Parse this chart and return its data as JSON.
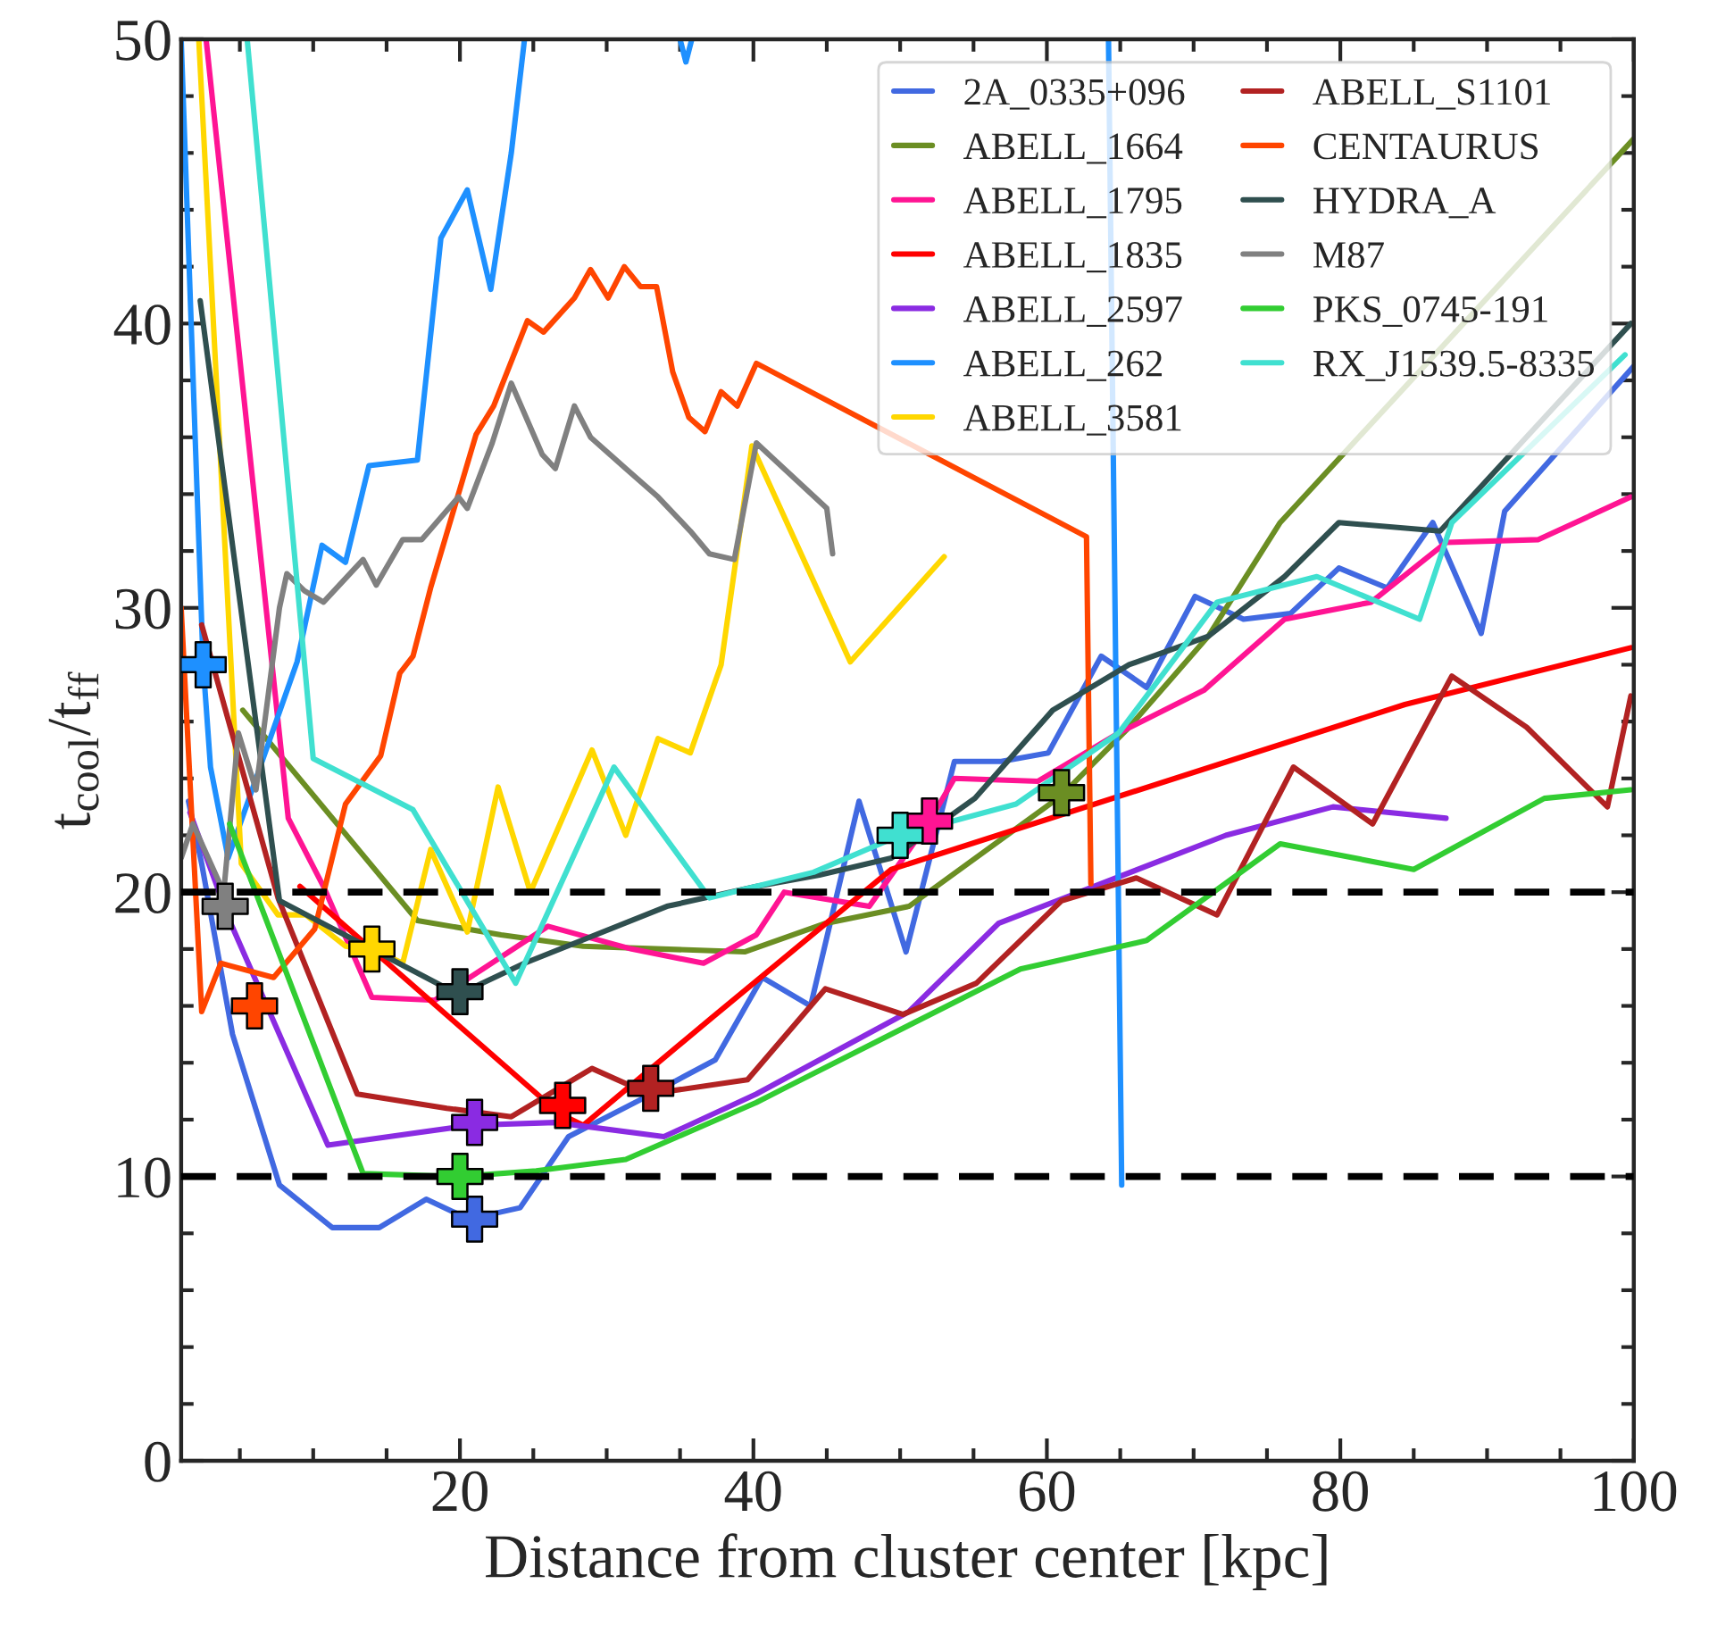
{
  "chart_data": {
    "type": "line",
    "xlabel": "Distance from cluster center [kpc]",
    "ylabel": "t$_{cool}$/t$_{ff}$",
    "xlim": [
      1,
      100
    ],
    "xticks": [
      20,
      40,
      60,
      80,
      100
    ],
    "ylim": [
      0,
      50
    ],
    "yticks": [
      0,
      10,
      20,
      30,
      40,
      50
    ],
    "grid": false,
    "legend": "top right",
    "line_style": "solid",
    "ref_lines": [
      {
        "axis": "y",
        "value": 20,
        "color": "#000000",
        "line_style": "dashed"
      },
      {
        "axis": "y",
        "value": 10,
        "color": "#000000",
        "line_style": "dashed"
      }
    ],
    "series": [
      {
        "name": "2A_0335+096",
        "color": "#4169e1",
        "x": [
          1.5,
          2.4,
          4.5,
          7.7,
          11.3,
          14.5,
          17.7,
          20.6,
          24.1,
          27.4,
          32.3,
          37.4,
          40.6,
          43.9,
          47.2,
          50.4,
          53.7,
          56.9,
          60.1,
          63.7,
          66.8,
          70.1,
          73.4,
          76.6,
          79.9,
          83.2,
          86.3,
          89.6,
          91.2,
          100
        ],
        "values": [
          23.2,
          21.0,
          15.0,
          9.7,
          8.2,
          8.2,
          9.2,
          8.5,
          8.9,
          11.4,
          12.7,
          14.1,
          17.0,
          16.0,
          23.2,
          17.9,
          24.6,
          24.6,
          24.9,
          28.3,
          27.2,
          30.4,
          29.6,
          29.8,
          31.4,
          30.7,
          33.0,
          29.1,
          33.4,
          38.5
        ]
      },
      {
        "name": "ABELL_1664",
        "color": "#6b8e23",
        "x": [
          5.2,
          17.1,
          22.8,
          28.4,
          33.8,
          39.4,
          44.9,
          50.6,
          61.0,
          65.6,
          71.0,
          75.9,
          100
        ],
        "values": [
          26.4,
          19.0,
          18.5,
          18.1,
          18.0,
          17.9,
          18.9,
          19.5,
          23.4,
          25.8,
          29.0,
          33.0,
          46.5
        ]
      },
      {
        "name": "ABELL_1795",
        "color": "#ff1493",
        "x": [
          2.7,
          8.3,
          10.7,
          14.0,
          18.3,
          26.0,
          31.7,
          36.6,
          40.2,
          42.1,
          47.9,
          52.0,
          53.7,
          59.4,
          64.9,
          70.7,
          76.2,
          82.1,
          87.2,
          93.5,
          99.8
        ],
        "values": [
          50,
          22.6,
          20.2,
          16.3,
          16.2,
          18.8,
          18.0,
          17.5,
          18.5,
          20.0,
          19.5,
          22.5,
          24.0,
          23.9,
          25.6,
          27.1,
          29.6,
          30.2,
          32.3,
          32.4,
          33.9
        ]
      },
      {
        "name": "ABELL_1835",
        "color": "#ff0000",
        "x": [
          9.1,
          26.8,
          28.4,
          37.2,
          49.4,
          84.4,
          99.8
        ],
        "values": [
          20.2,
          12.2,
          11.8,
          15.6,
          20.8,
          26.6,
          28.6
        ]
      },
      {
        "name": "ABELL_2597",
        "color": "#8a2be2",
        "x": [
          1.6,
          4.3,
          11.0,
          20.7,
          26.5,
          33.9,
          40.2,
          50.6,
          56.7,
          61.2,
          72.2,
          79.5,
          87.2
        ],
        "values": [
          22.8,
          19.0,
          11.1,
          11.8,
          11.9,
          11.4,
          12.9,
          15.8,
          18.9,
          19.8,
          22.0,
          23.0,
          22.6
        ]
      },
      {
        "name": "ABELL_262",
        "color": "#1e90ff",
        "x": [
          1.0,
          2.5,
          3.0,
          4.2,
          8.9,
          10.6,
          12.2,
          13.8,
          17.1,
          18.7,
          20.5,
          22.1,
          23.5,
          24.4,
          30.0,
          35.0,
          35.4,
          35.8,
          45.0,
          64.2,
          65.1
        ],
        "values": [
          50,
          28.0,
          24.4,
          21.2,
          28.1,
          32.2,
          31.6,
          35.0,
          35.2,
          43.0,
          44.7,
          41.2,
          46.0,
          50,
          null,
          50,
          49.2,
          50,
          null,
          50,
          9.7
        ]
      },
      {
        "name": "ABELL_3581",
        "color": "#ffd700",
        "x": [
          2.2,
          5.1,
          7.6,
          9.5,
          12.2,
          14.0,
          16.1,
          18.0,
          20.5,
          22.6,
          24.8,
          29.0,
          31.3,
          33.5,
          35.7,
          37.8,
          39.9,
          46.6,
          53.0
        ],
        "values": [
          50,
          21.0,
          19.2,
          19.2,
          18.1,
          18.0,
          17.5,
          21.5,
          18.6,
          23.7,
          20.0,
          25.0,
          22.0,
          25.4,
          24.9,
          28.0,
          35.7,
          28.1,
          31.8
        ]
      },
      {
        "name": "ABELL_S1101",
        "color": "#b22222",
        "x": [
          2.4,
          7.6,
          13.0,
          19.1,
          23.5,
          29.0,
          32.9,
          39.6,
          44.9,
          50.2,
          55.2,
          61.0,
          66.1,
          71.6,
          76.8,
          82.2,
          87.6,
          92.7,
          98.2,
          99.8
        ],
        "values": [
          29.4,
          19.8,
          12.9,
          12.4,
          12.1,
          13.8,
          12.9,
          13.4,
          16.6,
          15.7,
          16.8,
          19.7,
          20.5,
          19.2,
          24.4,
          22.4,
          27.6,
          25.8,
          23.0,
          26.9
        ]
      },
      {
        "name": "CENTAURUS",
        "color": "#ff4500",
        "x": [
          1.0,
          2.4,
          3.7,
          7.3,
          10.1,
          12.2,
          14.6,
          15.9,
          16.8,
          18.0,
          21.1,
          22.3,
          24.6,
          25.7,
          27.8,
          28.9,
          30.1,
          31.2,
          32.3,
          33.4,
          34.5,
          35.6,
          36.7,
          37.8,
          38.9,
          40.2,
          62.7,
          63.0
        ],
        "values": [
          30.0,
          15.8,
          17.5,
          17.0,
          18.7,
          23.1,
          24.8,
          27.7,
          28.3,
          30.7,
          36.1,
          37.1,
          40.1,
          39.7,
          40.9,
          41.9,
          40.9,
          42.0,
          41.3,
          41.3,
          38.3,
          36.7,
          36.2,
          37.6,
          37.1,
          38.6,
          32.5,
          20.3
        ]
      },
      {
        "name": "HYDRA_A",
        "color": "#2f4f4f",
        "x": [
          2.3,
          7.7,
          19.9,
          24.4,
          34.1,
          40.2,
          44.5,
          49.4,
          55.1,
          60.4,
          65.6,
          71.0,
          76.2,
          79.9,
          86.8,
          99.8
        ],
        "values": [
          40.8,
          19.7,
          16.4,
          17.5,
          19.5,
          20.2,
          20.6,
          21.2,
          23.3,
          26.4,
          28.0,
          29.0,
          31.1,
          33.0,
          32.7,
          40.0
        ]
      },
      {
        "name": "M87",
        "color": "#808080",
        "x": [
          1.0,
          1.8,
          3.9,
          4.9,
          6.1,
          7.7,
          8.2,
          9.4,
          10.7,
          13.4,
          14.3,
          16.1,
          17.4,
          19.9,
          20.5,
          22.2,
          23.5,
          25.6,
          26.5,
          27.8,
          28.9,
          31.3,
          33.5,
          35.7,
          37.0,
          38.7,
          40.2,
          45.0,
          45.4
        ],
        "values": [
          21.2,
          22.4,
          20.0,
          25.6,
          23.6,
          30.0,
          31.2,
          30.6,
          30.2,
          31.7,
          30.8,
          32.4,
          32.4,
          33.9,
          33.5,
          35.8,
          37.9,
          35.4,
          34.9,
          37.1,
          36.0,
          34.9,
          33.9,
          32.7,
          31.9,
          31.7,
          35.8,
          33.5,
          31.9
        ]
      },
      {
        "name": "PKS_0745-191",
        "color": "#32cd32",
        "x": [
          4.3,
          13.4,
          20.0,
          25.2,
          31.3,
          40.2,
          42.1,
          58.2,
          66.8,
          75.9,
          85.0,
          93.9,
          99.8
        ],
        "values": [
          22.4,
          10.1,
          10.0,
          10.2,
          10.6,
          12.6,
          13.1,
          17.3,
          18.3,
          21.7,
          20.8,
          23.3,
          23.6
        ]
      },
      {
        "name": "RX_J1539.5-8335",
        "color": "#40e0d0",
        "x": [
          5.5,
          10.0,
          16.8,
          23.8,
          30.5,
          37.0,
          44.1,
          50.0,
          57.9,
          64.9,
          71.6,
          78.4,
          85.4,
          87.6,
          99.4
        ],
        "values": [
          50,
          24.7,
          22.9,
          16.8,
          24.4,
          19.8,
          20.7,
          22.0,
          23.1,
          25.6,
          30.2,
          31.1,
          29.6,
          33.0,
          38.9
        ]
      },
      {
        "type": "scatter",
        "marker": "cross",
        "x": [
          21,
          61,
          52,
          27,
          21,
          2.5,
          14,
          33,
          6,
          20,
          4,
          20,
          50
        ],
        "values": [
          8.5,
          23.5,
          22.5,
          12.5,
          11.9,
          28.0,
          18.0,
          13.1,
          16.0,
          16.5,
          19.5,
          10.0,
          22.0
        ],
        "colors": [
          "#4169e1",
          "#6b8e23",
          "#ff1493",
          "#ff0000",
          "#8a2be2",
          "#1e90ff",
          "#ffd700",
          "#b22222",
          "#ff4500",
          "#2f4f4f",
          "#808080",
          "#32cd32",
          "#40e0d0"
        ]
      }
    ]
  }
}
